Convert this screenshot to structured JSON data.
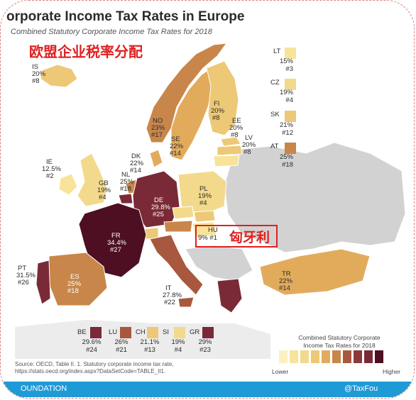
{
  "title": "orporate Income Tax Rates in Europe",
  "subtitle": "Combined Statutory Corporate Income Tax Rates for 2018",
  "annotation_cn_title": "欧盟企业税率分配",
  "annotation_hu_cn": "匈牙利",
  "colors": {
    "scale": [
      "#f7e49a",
      "#f3d98c",
      "#edc877",
      "#e2ab5c",
      "#c8864a",
      "#a8583f",
      "#7a2a36",
      "#4e0f22"
    ],
    "non_member": "#d2d2d2",
    "sea": "#ffffff",
    "footer": "#1e9ad6",
    "highlight": "#e02020"
  },
  "countries": [
    {
      "code": "IS",
      "rate": "20%",
      "rank": "#8"
    },
    {
      "code": "NO",
      "rate": "23%",
      "rank": "#17"
    },
    {
      "code": "SE",
      "rate": "22%",
      "rank": "#14"
    },
    {
      "code": "FI",
      "rate": "20%",
      "rank": "#8"
    },
    {
      "code": "EE",
      "rate": "20%",
      "rank": "#8"
    },
    {
      "code": "LV",
      "rate": "20%",
      "rank": "#8"
    },
    {
      "code": "DK",
      "rate": "22%",
      "rank": "#14"
    },
    {
      "code": "IE",
      "rate": "12.5%",
      "rank": "#2"
    },
    {
      "code": "GB",
      "rate": "19%",
      "rank": "#4"
    },
    {
      "code": "NL",
      "rate": "25%",
      "rank": "#18"
    },
    {
      "code": "DE",
      "rate": "29.8%",
      "rank": "#25"
    },
    {
      "code": "PL",
      "rate": "19%",
      "rank": "#4"
    },
    {
      "code": "FR",
      "rate": "34.4%",
      "rank": "#27"
    },
    {
      "code": "HU",
      "rate": "9%",
      "rank": "#1"
    },
    {
      "code": "PT",
      "rate": "31.5%",
      "rank": "#26"
    },
    {
      "code": "ES",
      "rate": "25%",
      "rank": "#18"
    },
    {
      "code": "IT",
      "rate": "27.8%",
      "rank": "#22"
    },
    {
      "code": "TR",
      "rate": "22%",
      "rank": "#14"
    }
  ],
  "side_keys": [
    {
      "code": "LT",
      "rate": "15%",
      "rank": "#3"
    },
    {
      "code": "CZ",
      "rate": "19%",
      "rank": "#4"
    },
    {
      "code": "SK",
      "rate": "21%",
      "rank": "#12"
    },
    {
      "code": "AT",
      "rate": "25%",
      "rank": "#18"
    }
  ],
  "bottom_keys": [
    {
      "code": "BE",
      "rate": "29.6%",
      "rank": "#24"
    },
    {
      "code": "LU",
      "rate": "26%",
      "rank": "#21"
    },
    {
      "code": "CH",
      "rate": "21.1%",
      "rank": "#13"
    },
    {
      "code": "SI",
      "rate": "19%",
      "rank": "#4"
    },
    {
      "code": "GR",
      "rate": "29%",
      "rank": "#23"
    }
  ],
  "legend": {
    "title_line1": "Combined Statutory Corporate",
    "title_line2": "Income Tax Rates for 2018",
    "low": "Lower",
    "high": "Higher"
  },
  "source": {
    "line1": "Source:  OECD, Table II. 1. Statutory corporate income tax rate,",
    "line2": "https://stats.oecd.org/index.aspx?DataSetCode=TABLE_II1."
  },
  "footer": {
    "left": "OUNDATION",
    "right": "@TaxFou"
  }
}
